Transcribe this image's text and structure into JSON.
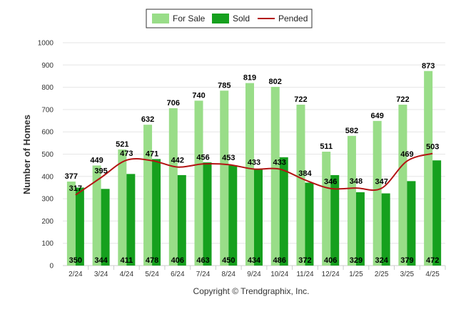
{
  "chart_data": {
    "type": "bar",
    "ylabel": "Number of Homes",
    "ylim": [
      0,
      1000
    ],
    "yticks": [
      0,
      100,
      200,
      300,
      400,
      500,
      600,
      700,
      800,
      900,
      1000
    ],
    "grid": true,
    "legend_position": "top-center",
    "categories": [
      "2/24",
      "3/24",
      "4/24",
      "5/24",
      "6/24",
      "7/24",
      "8/24",
      "9/24",
      "10/24",
      "11/24",
      "12/24",
      "1/25",
      "2/25",
      "3/25",
      "4/25"
    ],
    "series": [
      {
        "name": "For Sale",
        "kind": "bar",
        "color": "#99dd88",
        "values": [
          377,
          449,
          521,
          632,
          706,
          740,
          785,
          819,
          802,
          722,
          511,
          582,
          649,
          722,
          873
        ]
      },
      {
        "name": "Sold",
        "kind": "bar",
        "color": "#16a01e",
        "values": [
          350,
          344,
          411,
          478,
          406,
          463,
          450,
          434,
          486,
          372,
          406,
          329,
          324,
          379,
          472
        ]
      },
      {
        "name": "Pended",
        "kind": "line",
        "color": "#b31313",
        "values": [
          317,
          395,
          473,
          471,
          442,
          456,
          453,
          433,
          433,
          384,
          346,
          348,
          347,
          469,
          503
        ]
      }
    ]
  },
  "copyright": "Copyright © Trendgraphix, Inc."
}
